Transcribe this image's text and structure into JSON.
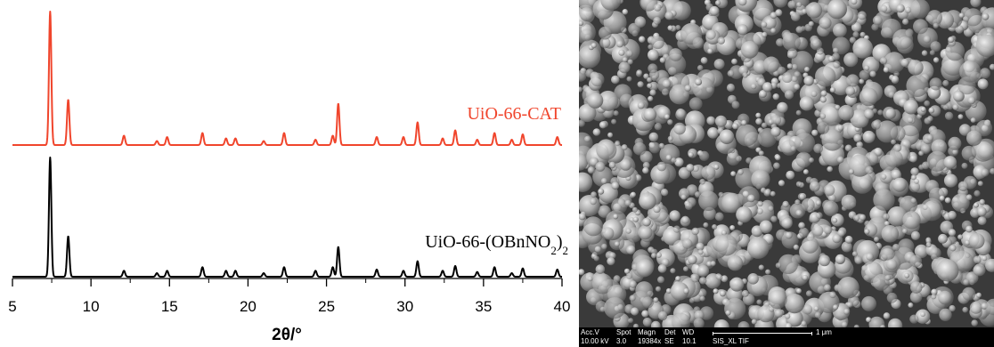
{
  "chart_data": {
    "type": "line",
    "xlabel": "2θ/°",
    "xlim": [
      5,
      40
    ],
    "xticks": [
      5,
      10,
      15,
      20,
      25,
      30,
      35,
      40
    ],
    "series": [
      {
        "name": "UiO-66-CAT",
        "color": "#f0452c",
        "peaks": [
          [
            7.4,
            1.0
          ],
          [
            8.55,
            0.34
          ],
          [
            12.1,
            0.07
          ],
          [
            14.2,
            0.03
          ],
          [
            14.85,
            0.06
          ],
          [
            17.1,
            0.09
          ],
          [
            18.6,
            0.05
          ],
          [
            19.2,
            0.05
          ],
          [
            21.0,
            0.03
          ],
          [
            22.3,
            0.09
          ],
          [
            24.3,
            0.04
          ],
          [
            25.4,
            0.07
          ],
          [
            25.75,
            0.31
          ],
          [
            28.2,
            0.06
          ],
          [
            29.9,
            0.06
          ],
          [
            30.8,
            0.17
          ],
          [
            32.4,
            0.05
          ],
          [
            33.2,
            0.11
          ],
          [
            34.6,
            0.04
          ],
          [
            35.7,
            0.09
          ],
          [
            36.8,
            0.04
          ],
          [
            37.5,
            0.08
          ],
          [
            39.7,
            0.06
          ]
        ]
      },
      {
        "name_prefix": "UiO-66-(OBnNO",
        "name_sub1": "2",
        "name_mid": ")",
        "name_sub2": "2",
        "color": "#000000",
        "peaks": [
          [
            7.4,
            1.0
          ],
          [
            8.55,
            0.34
          ],
          [
            12.1,
            0.05
          ],
          [
            14.2,
            0.03
          ],
          [
            14.85,
            0.05
          ],
          [
            17.1,
            0.08
          ],
          [
            18.6,
            0.05
          ],
          [
            19.2,
            0.05
          ],
          [
            21.0,
            0.03
          ],
          [
            22.3,
            0.08
          ],
          [
            24.3,
            0.05
          ],
          [
            25.4,
            0.08
          ],
          [
            25.75,
            0.25
          ],
          [
            28.2,
            0.06
          ],
          [
            29.9,
            0.05
          ],
          [
            30.8,
            0.13
          ],
          [
            32.4,
            0.05
          ],
          [
            33.2,
            0.09
          ],
          [
            34.6,
            0.04
          ],
          [
            35.7,
            0.08
          ],
          [
            36.8,
            0.03
          ],
          [
            37.5,
            0.07
          ],
          [
            39.7,
            0.06
          ]
        ]
      }
    ]
  },
  "sem": {
    "labels": {
      "acc_v": "Acc.V",
      "spot": "Spot",
      "magn": "Magn",
      "det": "Det",
      "wd": "WD",
      "scale": "1 μm"
    },
    "values": {
      "acc_v": "10.00 kV",
      "spot": "3.0",
      "magn": "19384x",
      "det": "SE",
      "wd": "10.1",
      "sample": "SIS_XL TIF"
    }
  }
}
